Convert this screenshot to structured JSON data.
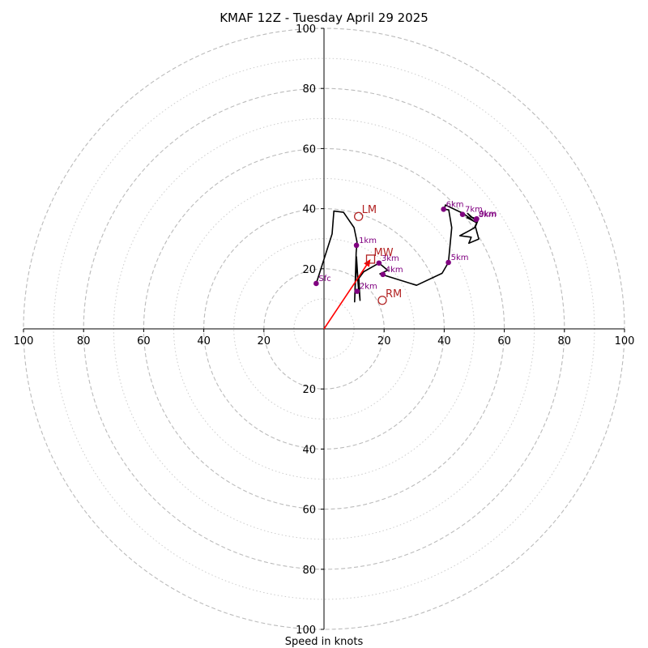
{
  "chart_data": {
    "type": "hodograph",
    "title": "KMAF 12Z - Tuesday April 29 2025",
    "xlabel": "Speed in knots",
    "range": [
      -100,
      100
    ],
    "major_rings": [
      20,
      40,
      60,
      80,
      100
    ],
    "minor_rings": [
      10,
      30,
      50,
      70,
      90
    ],
    "ticks": {
      "x": [
        {
          "v": -100,
          "label": "100"
        },
        {
          "v": -80,
          "label": "80"
        },
        {
          "v": -60,
          "label": "60"
        },
        {
          "v": -40,
          "label": "40"
        },
        {
          "v": -20,
          "label": "20"
        },
        {
          "v": 20,
          "label": "20"
        },
        {
          "v": 40,
          "label": "40"
        },
        {
          "v": 60,
          "label": "60"
        },
        {
          "v": 80,
          "label": "80"
        },
        {
          "v": 100,
          "label": "100"
        }
      ],
      "y": [
        {
          "v": 100,
          "label": "100"
        },
        {
          "v": 80,
          "label": "80"
        },
        {
          "v": 60,
          "label": "60"
        },
        {
          "v": 40,
          "label": "40"
        },
        {
          "v": 20,
          "label": "20"
        },
        {
          "v": -20,
          "label": "20"
        },
        {
          "v": -40,
          "label": "40"
        },
        {
          "v": -60,
          "label": "60"
        },
        {
          "v": -80,
          "label": "80"
        },
        {
          "v": -100,
          "label": "100"
        }
      ]
    },
    "trace": [
      [
        -2.6,
        15.1
      ],
      [
        2.7,
        31.6
      ],
      [
        3.3,
        39.2
      ],
      [
        6.5,
        38.8
      ],
      [
        10.0,
        33.7
      ],
      [
        11.0,
        28.9
      ],
      [
        10.7,
        25.4
      ],
      [
        10.2,
        9.0
      ],
      [
        10.8,
        24.0
      ],
      [
        11.5,
        13.0
      ],
      [
        10.8,
        21.6
      ],
      [
        12.0,
        9.5
      ],
      [
        11.6,
        16.8
      ],
      [
        13.2,
        19.0
      ],
      [
        18.3,
        21.9
      ],
      [
        21.2,
        19.5
      ],
      [
        18.6,
        18.3
      ],
      [
        30.8,
        14.5
      ],
      [
        39.3,
        18.5
      ],
      [
        41.4,
        22.1
      ],
      [
        42.5,
        33.7
      ],
      [
        41.5,
        39.6
      ],
      [
        40.0,
        39.8
      ],
      [
        40.4,
        41.2
      ],
      [
        46.3,
        38.4
      ],
      [
        49.3,
        36.3
      ],
      [
        47.6,
        37.0
      ],
      [
        50.8,
        35.3
      ],
      [
        50.1,
        33.7
      ],
      [
        48.4,
        32.7
      ],
      [
        45.2,
        31.0
      ],
      [
        49.0,
        30.5
      ],
      [
        48.2,
        28.5
      ],
      [
        51.5,
        29.9
      ],
      [
        50.4,
        34.0
      ],
      [
        51.4,
        36.6
      ],
      [
        50.2,
        36.3
      ],
      [
        47.8,
        38.4
      ],
      [
        48.9,
        37.2
      ],
      [
        50.6,
        36.7
      ]
    ],
    "points": [
      {
        "label": "Sfc",
        "x": -2.6,
        "y": 15.1
      },
      {
        "label": "1km",
        "x": 10.8,
        "y": 27.8
      },
      {
        "label": "2km",
        "x": 11.0,
        "y": 12.5
      },
      {
        "label": "3km",
        "x": 18.3,
        "y": 21.9
      },
      {
        "label": "4km",
        "x": 19.6,
        "y": 18.1
      },
      {
        "label": "5km",
        "x": 41.4,
        "y": 22.1
      },
      {
        "label": "6km",
        "x": 39.8,
        "y": 39.8
      },
      {
        "label": "7km",
        "x": 46.1,
        "y": 38.1
      },
      {
        "label": "8km",
        "x": 50.6,
        "y": 36.4
      },
      {
        "label": "9km",
        "x": 50.8,
        "y": 36.6
      }
    ],
    "motions": [
      {
        "label": "LM",
        "x": 11.5,
        "y": 37.4,
        "marker": "circle"
      },
      {
        "label": "MW",
        "x": 15.5,
        "y": 23.2,
        "marker": "square"
      },
      {
        "label": "RM",
        "x": 19.4,
        "y": 9.5,
        "marker": "circle"
      }
    ],
    "arrow": {
      "to": [
        15.5,
        23.2
      ]
    },
    "colors": {
      "trace": "#000000",
      "points": "#800080",
      "motion": "#b22222",
      "arrow": "#ff0000",
      "rings": "#bbbbbb"
    }
  }
}
